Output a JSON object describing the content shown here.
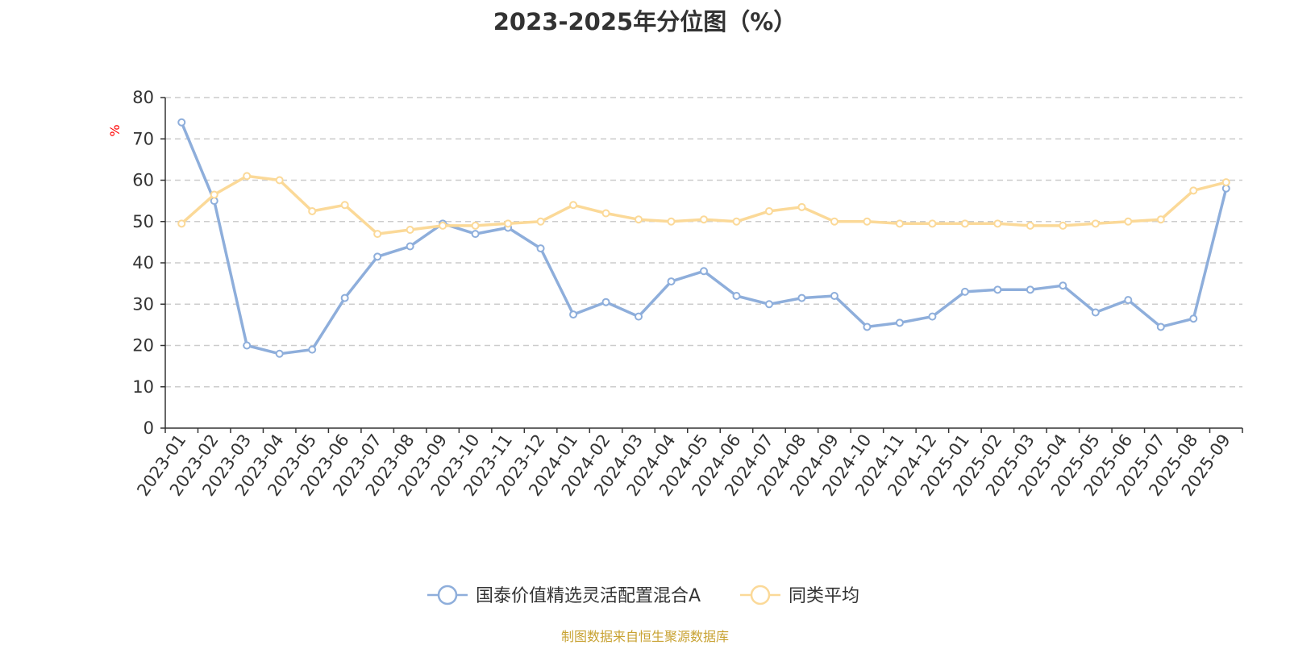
{
  "chart_data": {
    "type": "line",
    "title": "2023-2025年分位图（%）",
    "ylabel": "%",
    "ylim": [
      0,
      80
    ],
    "yticks": [
      0,
      10,
      20,
      30,
      40,
      50,
      60,
      70,
      80
    ],
    "grid": true,
    "legend_position": "bottom",
    "categories": [
      "2023-01",
      "2023-02",
      "2023-03",
      "2023-04",
      "2023-05",
      "2023-06",
      "2023-07",
      "2023-08",
      "2023-09",
      "2023-10",
      "2023-11",
      "2023-12",
      "2024-01",
      "2024-02",
      "2024-03",
      "2024-04",
      "2024-05",
      "2024-06",
      "2024-07",
      "2024-08",
      "2024-09",
      "2024-10",
      "2024-11",
      "2024-12",
      "2025-01",
      "2025-02",
      "2025-03",
      "2025-04",
      "2025-05",
      "2025-06",
      "2025-07",
      "2025-08",
      "2025-09"
    ],
    "series": [
      {
        "name": "国泰价值精选灵活配置混合A",
        "color": "#8eaedb",
        "values": [
          74.0,
          55.0,
          20.0,
          18.0,
          19.0,
          31.5,
          41.5,
          44.0,
          49.5,
          47.0,
          48.5,
          43.5,
          27.5,
          30.5,
          27.0,
          35.5,
          38.0,
          32.0,
          30.0,
          31.5,
          32.0,
          24.5,
          25.5,
          27.0,
          33.0,
          33.5,
          33.5,
          34.5,
          28.0,
          31.0,
          24.5,
          26.5,
          58.0
        ]
      },
      {
        "name": "同类平均",
        "color": "#fbd998",
        "values": [
          49.5,
          56.5,
          61.0,
          60.0,
          52.5,
          54.0,
          47.0,
          48.0,
          49.0,
          49.0,
          49.5,
          50.0,
          54.0,
          52.0,
          50.5,
          50.0,
          50.5,
          50.0,
          52.5,
          53.5,
          50.0,
          50.0,
          49.5,
          49.5,
          49.5,
          49.5,
          49.0,
          49.0,
          49.5,
          50.0,
          50.5,
          57.5,
          59.5
        ]
      }
    ]
  },
  "source_note": "制图数据来自恒生聚源数据库"
}
